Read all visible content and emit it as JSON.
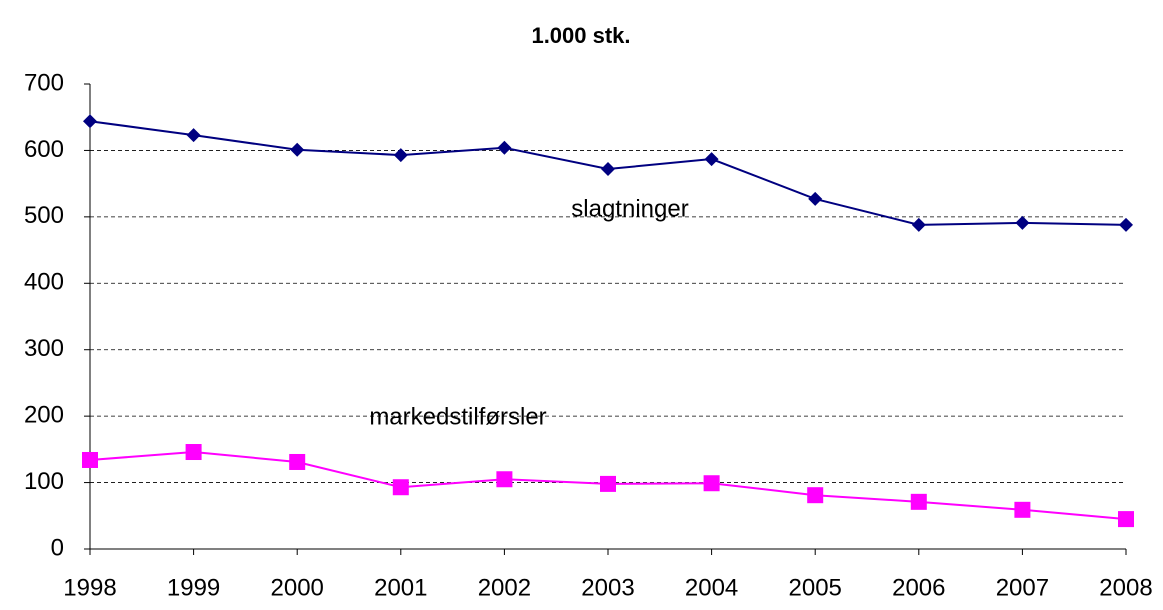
{
  "chart_data": {
    "type": "line",
    "title": "1.000 stk.",
    "x": [
      1998,
      1999,
      2000,
      2001,
      2002,
      2003,
      2004,
      2005,
      2006,
      2007,
      2008
    ],
    "series": [
      {
        "name": "slagtninger",
        "color": "#000080",
        "marker": "diamond",
        "values": [
          644,
          623,
          601,
          593,
          604,
          572,
          587,
          527,
          488,
          491,
          488
        ]
      },
      {
        "name": "markedstilførsler",
        "color": "#ff00ff",
        "marker": "square",
        "values": [
          134,
          146,
          131,
          93,
          105,
          98,
          99,
          81,
          71,
          59,
          45
        ]
      }
    ],
    "xlim": [
      1998,
      2008
    ],
    "xticks": [
      1998,
      1999,
      2000,
      2001,
      2002,
      2003,
      2004,
      2005,
      2006,
      2007,
      2008
    ],
    "ylim": [
      0,
      700
    ],
    "yticks": [
      0,
      100,
      200,
      300,
      400,
      500,
      600,
      700
    ],
    "grid": true
  }
}
